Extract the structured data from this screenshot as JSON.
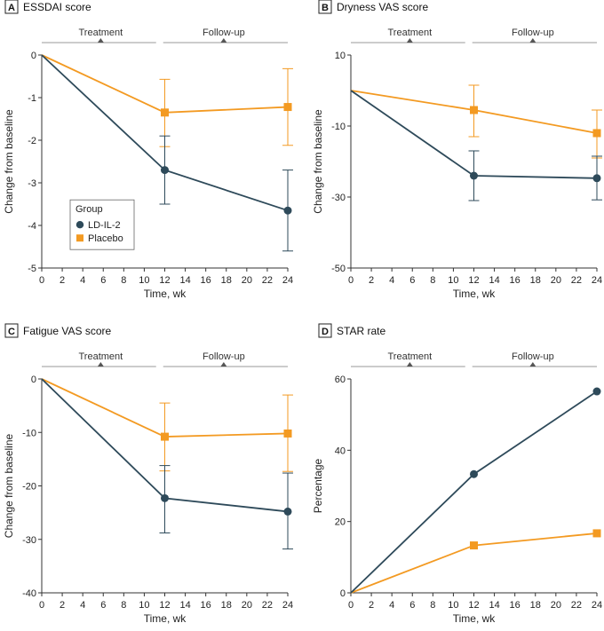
{
  "colors": {
    "ld_il2": "#2e4a5a",
    "placebo": "#f39a22",
    "axis": "#333333",
    "phase_line": "#9a9a9a"
  },
  "phases": {
    "treatment": "Treatment",
    "followup": "Follow-up"
  },
  "legend": {
    "title": "Group",
    "items": [
      "LD-IL-2",
      "Placebo"
    ]
  },
  "chart_data": [
    {
      "type": "line",
      "panel": "A",
      "title": "ESSDAI score",
      "xlabel": "Time, wk",
      "ylabel": "Change from baseline",
      "xlim": [
        0,
        24
      ],
      "ylim": [
        -5,
        0
      ],
      "xticks": [
        0,
        2,
        4,
        6,
        8,
        10,
        12,
        14,
        16,
        18,
        20,
        22,
        24
      ],
      "yticks": [
        0,
        -1,
        -2,
        -3,
        -4,
        -5
      ],
      "show_legend": true,
      "series": [
        {
          "name": "LD-IL-2",
          "marker": "circle",
          "x": [
            0,
            12,
            24
          ],
          "y": [
            0,
            -2.7,
            -3.65
          ],
          "err_low": [
            null,
            -3.5,
            -4.6
          ],
          "err_high": [
            null,
            -1.9,
            -2.7
          ]
        },
        {
          "name": "Placebo",
          "marker": "square",
          "x": [
            0,
            12,
            24
          ],
          "y": [
            0,
            -1.35,
            -1.22
          ],
          "err_low": [
            null,
            -2.15,
            -2.12
          ],
          "err_high": [
            null,
            -0.57,
            -0.32
          ]
        }
      ]
    },
    {
      "type": "line",
      "panel": "B",
      "title": "Dryness VAS score",
      "xlabel": "Time, wk",
      "ylabel": "Change from baseline",
      "xlim": [
        0,
        24
      ],
      "ylim": [
        -50,
        10
      ],
      "xticks": [
        0,
        2,
        4,
        6,
        8,
        10,
        12,
        14,
        16,
        18,
        20,
        22,
        24
      ],
      "yticks": [
        10,
        -10,
        -30,
        -50
      ],
      "show_legend": false,
      "series": [
        {
          "name": "LD-IL-2",
          "marker": "circle",
          "x": [
            0,
            12,
            24
          ],
          "y": [
            0,
            -24,
            -24.7
          ],
          "err_low": [
            null,
            -31,
            -30.8
          ],
          "err_high": [
            null,
            -17,
            -18.5
          ]
        },
        {
          "name": "Placebo",
          "marker": "square",
          "x": [
            0,
            12,
            24
          ],
          "y": [
            0,
            -5.5,
            -12
          ],
          "err_low": [
            null,
            -13,
            -19
          ],
          "err_high": [
            null,
            1.5,
            -5.5
          ]
        }
      ]
    },
    {
      "type": "line",
      "panel": "C",
      "title": "Fatigue VAS score",
      "xlabel": "Time, wk",
      "ylabel": "Change from baseline",
      "xlim": [
        0,
        24
      ],
      "ylim": [
        -40,
        0
      ],
      "xticks": [
        0,
        2,
        4,
        6,
        8,
        10,
        12,
        14,
        16,
        18,
        20,
        22,
        24
      ],
      "yticks": [
        0,
        -10,
        -20,
        -30,
        -40
      ],
      "show_legend": false,
      "series": [
        {
          "name": "LD-IL-2",
          "marker": "circle",
          "x": [
            0,
            12,
            24
          ],
          "y": [
            0,
            -22.3,
            -24.8
          ],
          "err_low": [
            null,
            -28.8,
            -31.8
          ],
          "err_high": [
            null,
            -16.2,
            -17.6
          ]
        },
        {
          "name": "Placebo",
          "marker": "square",
          "x": [
            0,
            12,
            24
          ],
          "y": [
            0,
            -10.8,
            -10.2
          ],
          "err_low": [
            null,
            -17.2,
            -17.3
          ],
          "err_high": [
            null,
            -4.5,
            -3.0
          ]
        }
      ]
    },
    {
      "type": "line",
      "panel": "D",
      "title": "STAR rate",
      "xlabel": "Time, wk",
      "ylabel": "Percentage",
      "xlim": [
        0,
        24
      ],
      "ylim": [
        0,
        60
      ],
      "xticks": [
        0,
        2,
        4,
        6,
        8,
        10,
        12,
        14,
        16,
        18,
        20,
        22,
        24
      ],
      "yticks": [
        0,
        20,
        40,
        60
      ],
      "show_legend": false,
      "series": [
        {
          "name": "LD-IL-2",
          "marker": "circle",
          "x": [
            0,
            12,
            24
          ],
          "y": [
            0,
            33.3,
            56.5
          ],
          "err_low": [
            null,
            null,
            null
          ],
          "err_high": [
            null,
            null,
            null
          ]
        },
        {
          "name": "Placebo",
          "marker": "square",
          "x": [
            0,
            12,
            24
          ],
          "y": [
            0,
            13.3,
            16.7
          ],
          "err_low": [
            null,
            null,
            null
          ],
          "err_high": [
            null,
            null,
            null
          ]
        }
      ]
    }
  ]
}
